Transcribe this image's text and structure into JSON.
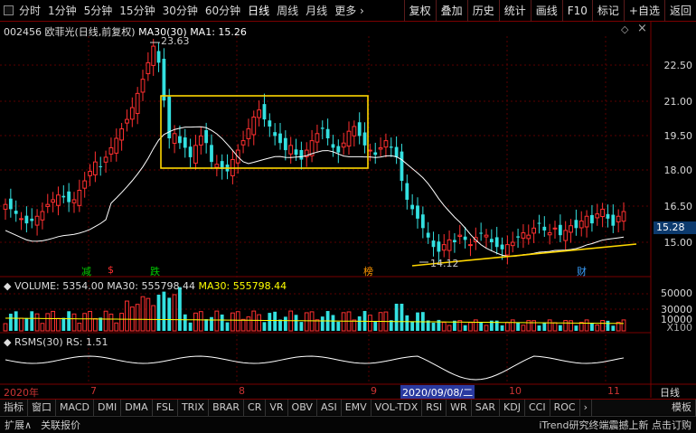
{
  "toolbar": {
    "left_items": [
      "分时",
      "1分钟",
      "5分钟",
      "15分钟",
      "30分钟",
      "60分钟",
      "日线",
      "周线",
      "月线",
      "更多"
    ],
    "more_arrow": "›",
    "active_item": "日线",
    "right_items": [
      "复权",
      "叠加",
      "历史",
      "统计",
      "画线",
      "F10",
      "标记",
      "+自选",
      "返回"
    ]
  },
  "stock": {
    "code": "002456",
    "name": "欧菲光",
    "period": "(日线,前复权)",
    "ma30_label": "MA30(30)",
    "ma1_label": "MA1:",
    "ma1_value": "15.26",
    "high_label": "23.63",
    "low_label": "14.12",
    "current_price": "15.28"
  },
  "price_axis": [
    "22.50",
    "21.00",
    "19.50",
    "18.00",
    "16.50",
    "15.00"
  ],
  "volume": {
    "label": "VOLUME:",
    "value": "5354.00",
    "ma30_label": "MA30:",
    "ma30_value": "555798.44",
    "ma30_label2": "MA30:",
    "ma30_value2": "555798.44",
    "axis": [
      "50000",
      "30000",
      "10000"
    ],
    "unit": "X100"
  },
  "rsms": {
    "label": "RSMS(30)",
    "rs_label": "RS:",
    "rs_value": "1.51"
  },
  "tags": [
    {
      "text": "减",
      "color": "#00cc00"
    },
    {
      "text": "$",
      "color": "#ff3030"
    },
    {
      "text": "跌",
      "color": "#00cc00"
    },
    {
      "text": "榜",
      "color": "#ff9900"
    },
    {
      "text": "财",
      "color": "#3aa0ff"
    }
  ],
  "date_axis": {
    "year": "2020年",
    "m7": "7",
    "m8": "8",
    "m9": "9",
    "highlight": "2020/09/08/二",
    "m10": "10",
    "m11": "11",
    "period": "日线"
  },
  "tabs": [
    "指标",
    "窗口",
    "MACD",
    "DMI",
    "DMA",
    "FSL",
    "TRIX",
    "BRAR",
    "CR",
    "VR",
    "OBV",
    "ASI",
    "EMV",
    "VOL-TDX",
    "RSI",
    "WR",
    "SAR",
    "KDJ",
    "CCI",
    "ROC"
  ],
  "tabs_more": "›",
  "tabs_right": "模板",
  "status": {
    "expand": "扩展∧",
    "related": "关联报价",
    "ad": "iTrend研究终端震撼上新 点击订购"
  },
  "colors": {
    "up": "#ff3030",
    "down": "#33e0e0",
    "ma": "#ffffff",
    "box": "#ffd700",
    "trendline": "#ffd700"
  }
}
